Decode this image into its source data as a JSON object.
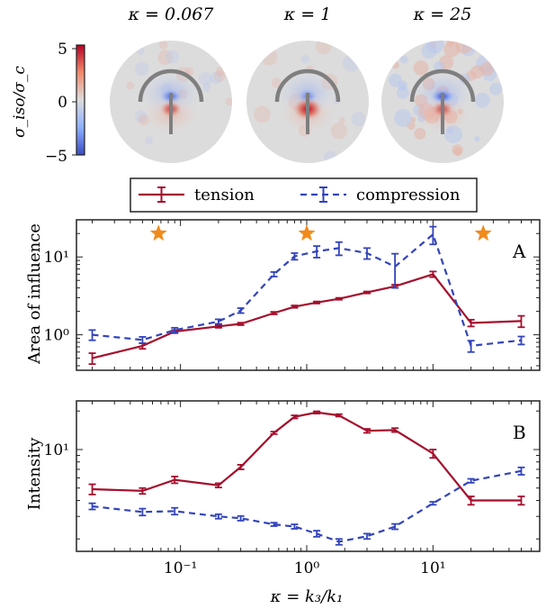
{
  "colors": {
    "tension": "#a50f2d",
    "compression": "#3344bb",
    "star": "#f28a1b",
    "disk_background": "#dcdcdc",
    "arc": "#7f7f7f",
    "frame": "#222222"
  },
  "panels_top": [
    {
      "kappa_label": "κ = 0.067",
      "noise": 0.15,
      "red_strength": 0.75,
      "blue_strength": 0.8,
      "red_spread": 1.0
    },
    {
      "kappa_label": "κ = 1",
      "noise": 0.1,
      "red_strength": 1.0,
      "blue_strength": 0.6,
      "red_spread": 1.35
    },
    {
      "kappa_label": "κ = 25",
      "noise": 0.55,
      "red_strength": 0.7,
      "blue_strength": 1.0,
      "red_spread": 1.0
    }
  ],
  "colorbar": {
    "label": "σ_iso/σ_c",
    "ticks": [
      "5",
      "0",
      "−5"
    ],
    "range": [
      -5,
      5
    ]
  },
  "legend": {
    "entries": [
      "tension",
      "compression"
    ],
    "placement": "top-center"
  },
  "chart_data": [
    {
      "type": "line",
      "panel_letter": "A",
      "ylabel": "Area of influence",
      "xscale": "log",
      "yscale": "log",
      "xlim": [
        0.015,
        70
      ],
      "ylim": [
        0.35,
        30
      ],
      "yticks": [
        "10⁰",
        "10¹"
      ],
      "star_markers": [
        0.067,
        1,
        25
      ],
      "star_y": 20,
      "series": [
        {
          "name": "tension",
          "x": [
            0.02,
            0.05,
            0.09,
            0.2,
            0.3,
            0.55,
            0.8,
            1.2,
            1.8,
            3,
            5,
            10,
            20,
            50
          ],
          "y": [
            0.5,
            0.72,
            1.1,
            1.28,
            1.38,
            1.9,
            2.3,
            2.6,
            2.9,
            3.5,
            4.2,
            6.0,
            1.42,
            1.5
          ],
          "err": [
            0.08,
            0.06,
            0.05,
            0.05,
            0.05,
            0.07,
            0.08,
            0.08,
            0.08,
            0.1,
            0.2,
            0.5,
            0.14,
            0.25
          ]
        },
        {
          "name": "compression",
          "x": [
            0.02,
            0.05,
            0.09,
            0.2,
            0.3,
            0.55,
            0.8,
            1.2,
            1.8,
            3,
            5,
            10,
            20,
            50
          ],
          "y": [
            1.0,
            0.86,
            1.15,
            1.48,
            2.05,
            6.0,
            10.2,
            11.8,
            13.0,
            11.2,
            7.5,
            19.5,
            0.72,
            0.85
          ],
          "err": [
            0.15,
            0.08,
            0.08,
            0.1,
            0.15,
            0.4,
            1.0,
            2.0,
            2.5,
            1.8,
            3.5,
            5.0,
            0.12,
            0.1
          ]
        }
      ]
    },
    {
      "type": "line",
      "panel_letter": "B",
      "ylabel": "Intensity",
      "xlabel": "κ = k₃/k₁",
      "xscale": "log",
      "yscale": "log",
      "xlim": [
        0.015,
        70
      ],
      "ylim": [
        1.6,
        24
      ],
      "yticks": [
        "10¹"
      ],
      "xticks": [
        "10⁻¹",
        "10⁰",
        "10¹"
      ],
      "series": [
        {
          "name": "tension",
          "x": [
            0.02,
            0.05,
            0.09,
            0.2,
            0.3,
            0.55,
            0.8,
            1.2,
            1.8,
            3,
            5,
            10,
            20,
            50
          ],
          "y": [
            4.9,
            4.75,
            5.8,
            5.25,
            7.3,
            13.5,
            18.0,
            19.5,
            18.5,
            14.0,
            14.2,
            9.3,
            4.0,
            4.0
          ],
          "err": [
            0.45,
            0.25,
            0.35,
            0.2,
            0.3,
            0.3,
            0.5,
            0.4,
            0.4,
            0.5,
            0.5,
            0.7,
            0.3,
            0.3
          ]
        },
        {
          "name": "compression",
          "x": [
            0.02,
            0.05,
            0.09,
            0.2,
            0.3,
            0.55,
            0.8,
            1.2,
            1.8,
            3,
            5,
            10,
            20,
            50
          ],
          "y": [
            3.6,
            3.25,
            3.3,
            3.0,
            2.9,
            2.6,
            2.5,
            2.2,
            1.9,
            2.1,
            2.5,
            3.8,
            5.7,
            6.8
          ],
          "err": [
            0.2,
            0.2,
            0.2,
            0.12,
            0.12,
            0.08,
            0.1,
            0.12,
            0.1,
            0.1,
            0.12,
            0.1,
            0.2,
            0.45
          ]
        }
      ]
    }
  ]
}
